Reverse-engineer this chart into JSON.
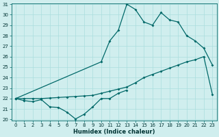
{
  "xlabel": "Humidex (Indice chaleur)",
  "background_color": "#d0eeee",
  "grid_color": "#aadddd",
  "line_color": "#006868",
  "ylim_min": 20,
  "ylim_max": 31,
  "xlim_min": -0.5,
  "xlim_max": 23.5,
  "yticks": [
    20,
    21,
    22,
    23,
    24,
    25,
    26,
    27,
    28,
    29,
    30,
    31
  ],
  "xticks": [
    0,
    1,
    2,
    3,
    4,
    5,
    6,
    7,
    8,
    9,
    10,
    11,
    12,
    13,
    14,
    15,
    16,
    17,
    18,
    19,
    20,
    21,
    22,
    23
  ],
  "line1_x": [
    0,
    1,
    2,
    3,
    4,
    5,
    6,
    7,
    8,
    9,
    10,
    11,
    12,
    13
  ],
  "line1_y": [
    22.0,
    21.8,
    21.7,
    21.9,
    21.2,
    21.15,
    20.7,
    20.05,
    20.5,
    21.2,
    22.0,
    22.0,
    22.5,
    22.8
  ],
  "line2_x": [
    0,
    10,
    11,
    12,
    13,
    14,
    15,
    16,
    17,
    18,
    19,
    20,
    21,
    22,
    23
  ],
  "line2_y": [
    22.0,
    25.5,
    27.5,
    28.5,
    31.0,
    30.5,
    29.3,
    29.0,
    30.2,
    29.5,
    29.3,
    28.0,
    27.5,
    26.8,
    25.2
  ],
  "line3_x": [
    0,
    1,
    2,
    3,
    4,
    5,
    6,
    7,
    8,
    9,
    10,
    11,
    12,
    13,
    14,
    15,
    16,
    17,
    18,
    19,
    20,
    21,
    22,
    23
  ],
  "line3_y": [
    22.0,
    22.0,
    22.0,
    22.0,
    22.05,
    22.1,
    22.15,
    22.2,
    22.25,
    22.3,
    22.5,
    22.7,
    22.9,
    23.1,
    23.5,
    24.0,
    24.3,
    24.6,
    24.9,
    25.2,
    25.5,
    25.7,
    26.0,
    22.4
  ]
}
